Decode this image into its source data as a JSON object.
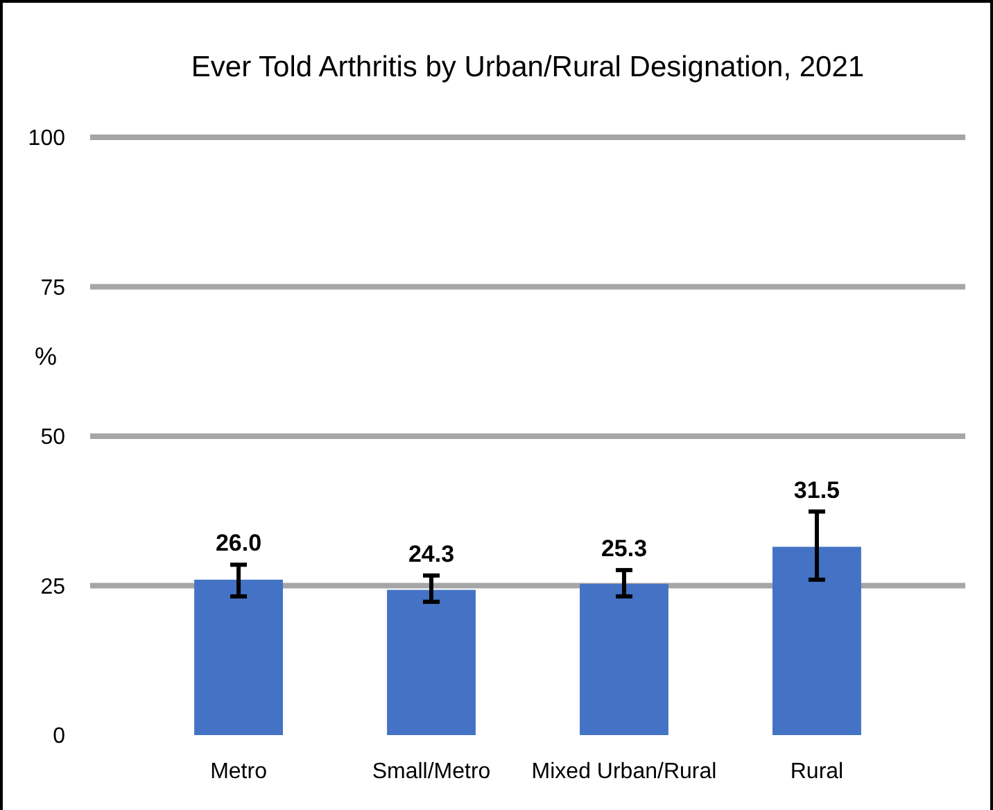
{
  "chart_data": {
    "type": "bar",
    "title": "Ever Told Arthritis by Urban/Rural Designation, 2021",
    "ylabel": "%",
    "categories": [
      "Metro",
      "Small/Metro",
      "Mixed Urban/Rural",
      "Rural"
    ],
    "values": [
      26.0,
      24.3,
      25.3,
      31.5
    ],
    "color": "#4472c4",
    "errors": [
      [
        23.2,
        28.5
      ],
      [
        22.3,
        26.7
      ],
      [
        23.2,
        27.6
      ],
      [
        26.0,
        37.4
      ]
    ],
    "value_labels": [
      "26.0",
      "24.3",
      "25.3",
      "31.5"
    ],
    "ylim": [
      0,
      100
    ],
    "yticks": [
      0,
      25,
      50,
      75,
      100
    ],
    "grid": "y"
  }
}
